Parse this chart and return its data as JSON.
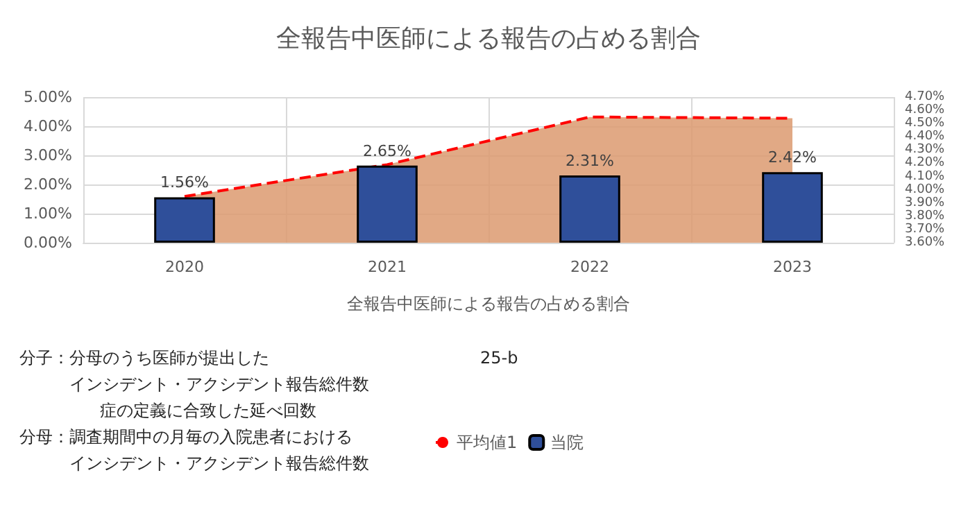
{
  "chart_data": {
    "type": "bar",
    "title": "全報告中医師による報告の占める割合",
    "xlabel": "全報告中医師による報告の占める割合",
    "categories": [
      "2020",
      "2021",
      "2022",
      "2023"
    ],
    "series": [
      {
        "name": "平均値1",
        "type": "area",
        "axis": "y2",
        "color": "#ff0000",
        "line_style": "dashed",
        "values": [
          3.95,
          4.19,
          4.55,
          4.54
        ]
      },
      {
        "name": "当院",
        "type": "bar",
        "color": "#2f4f9a",
        "values": [
          1.56,
          2.65,
          2.31,
          2.42
        ],
        "value_labels": [
          "1.56%",
          "2.65%",
          "2.31%",
          "2.42%"
        ]
      }
    ],
    "ylim": [
      0,
      5
    ],
    "yticks": [
      {
        "value": 0,
        "label": "0.00%"
      },
      {
        "value": 1,
        "label": "1.00%"
      },
      {
        "value": 2,
        "label": "2.00%"
      },
      {
        "value": 3,
        "label": "3.00%"
      },
      {
        "value": 4,
        "label": "4.00%"
      },
      {
        "value": 5,
        "label": "5.00%"
      }
    ],
    "y2lim": [
      3.6,
      4.7
    ],
    "y2ticks": [
      {
        "value": 3.6,
        "label": "3.60%"
      },
      {
        "value": 3.7,
        "label": "3.70%"
      },
      {
        "value": 3.8,
        "label": "3.80%"
      },
      {
        "value": 3.9,
        "label": "3.90%"
      },
      {
        "value": 4.0,
        "label": "4.00%"
      },
      {
        "value": 4.1,
        "label": "4.10%"
      },
      {
        "value": 4.2,
        "label": "4.20%"
      },
      {
        "value": 4.3,
        "label": "4.30%"
      },
      {
        "value": 4.4,
        "label": "4.40%"
      },
      {
        "value": 4.5,
        "label": "4.50%"
      },
      {
        "value": 4.6,
        "label": "4.60%"
      },
      {
        "value": 4.7,
        "label": "4.70%"
      }
    ],
    "grid": true,
    "legend": "bottom",
    "marker": "none",
    "annotations": [
      "25-b",
      "分子：分母のうち医師が提出した",
      "インシデント・アクシデント報告総件数",
      "症の定義に合致した延べ回数",
      "分母：調査期間中の月毎の入院患者における",
      "インシデント・アクシデント報告総件数"
    ]
  }
}
